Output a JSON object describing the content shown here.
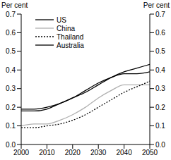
{
  "chart_data": {
    "type": "line",
    "y_label": "Per cent",
    "y2_label": "Per cent",
    "x": [
      2000,
      2005,
      2010,
      2015,
      2020,
      2025,
      2030,
      2035,
      2040,
      2045,
      2050
    ],
    "series": [
      {
        "name": "US",
        "color": "#000000",
        "line_style": "solid",
        "values": [
          0.19,
          0.19,
          0.2,
          0.22,
          0.25,
          0.29,
          0.33,
          0.36,
          0.38,
          0.38,
          0.39
        ]
      },
      {
        "name": "China",
        "color": "#b0b0b0",
        "line_style": "solid",
        "values": [
          0.1,
          0.11,
          0.11,
          0.13,
          0.16,
          0.2,
          0.25,
          0.29,
          0.32,
          0.32,
          0.32
        ]
      },
      {
        "name": "Thailand",
        "color": "#000000",
        "line_style": "dotted",
        "values": [
          0.09,
          0.09,
          0.1,
          0.11,
          0.13,
          0.16,
          0.2,
          0.24,
          0.28,
          0.31,
          0.34
        ]
      },
      {
        "name": "Australia",
        "color": "#000000",
        "line_style": "solid",
        "values": [
          0.18,
          0.18,
          0.19,
          0.22,
          0.25,
          0.28,
          0.32,
          0.36,
          0.39,
          0.41,
          0.43
        ]
      }
    ],
    "xlim": [
      2000,
      2050
    ],
    "xticks": [
      2000,
      2010,
      2020,
      2030,
      2040,
      2050
    ],
    "ylim": [
      0,
      0.7
    ],
    "yticks": [
      {
        "value": 0,
        "label": "0.0"
      },
      {
        "value": 0.1,
        "label": "0.1"
      },
      {
        "value": 0.2,
        "label": "0.2"
      },
      {
        "value": 0.3,
        "label": "0.3"
      },
      {
        "value": 0.4,
        "label": "0.4"
      },
      {
        "value": 0.5,
        "label": "0.5"
      },
      {
        "value": 0.6,
        "label": "0.6"
      },
      {
        "value": 0.7,
        "label": "0.7"
      }
    ],
    "y2lim": [
      0,
      0.7
    ],
    "y2ticks": [
      {
        "value": 0,
        "label": "0.0"
      },
      {
        "value": 0.1,
        "label": "0.1"
      },
      {
        "value": 0.2,
        "label": "0.2"
      },
      {
        "value": 0.3,
        "label": "0.3"
      },
      {
        "value": 0.4,
        "label": "0.4"
      },
      {
        "value": 0.5,
        "label": "0.5"
      },
      {
        "value": 0.6,
        "label": "0.6"
      },
      {
        "value": 0.7,
        "label": "0.7"
      }
    ],
    "legend": "top-left",
    "grid": false
  }
}
